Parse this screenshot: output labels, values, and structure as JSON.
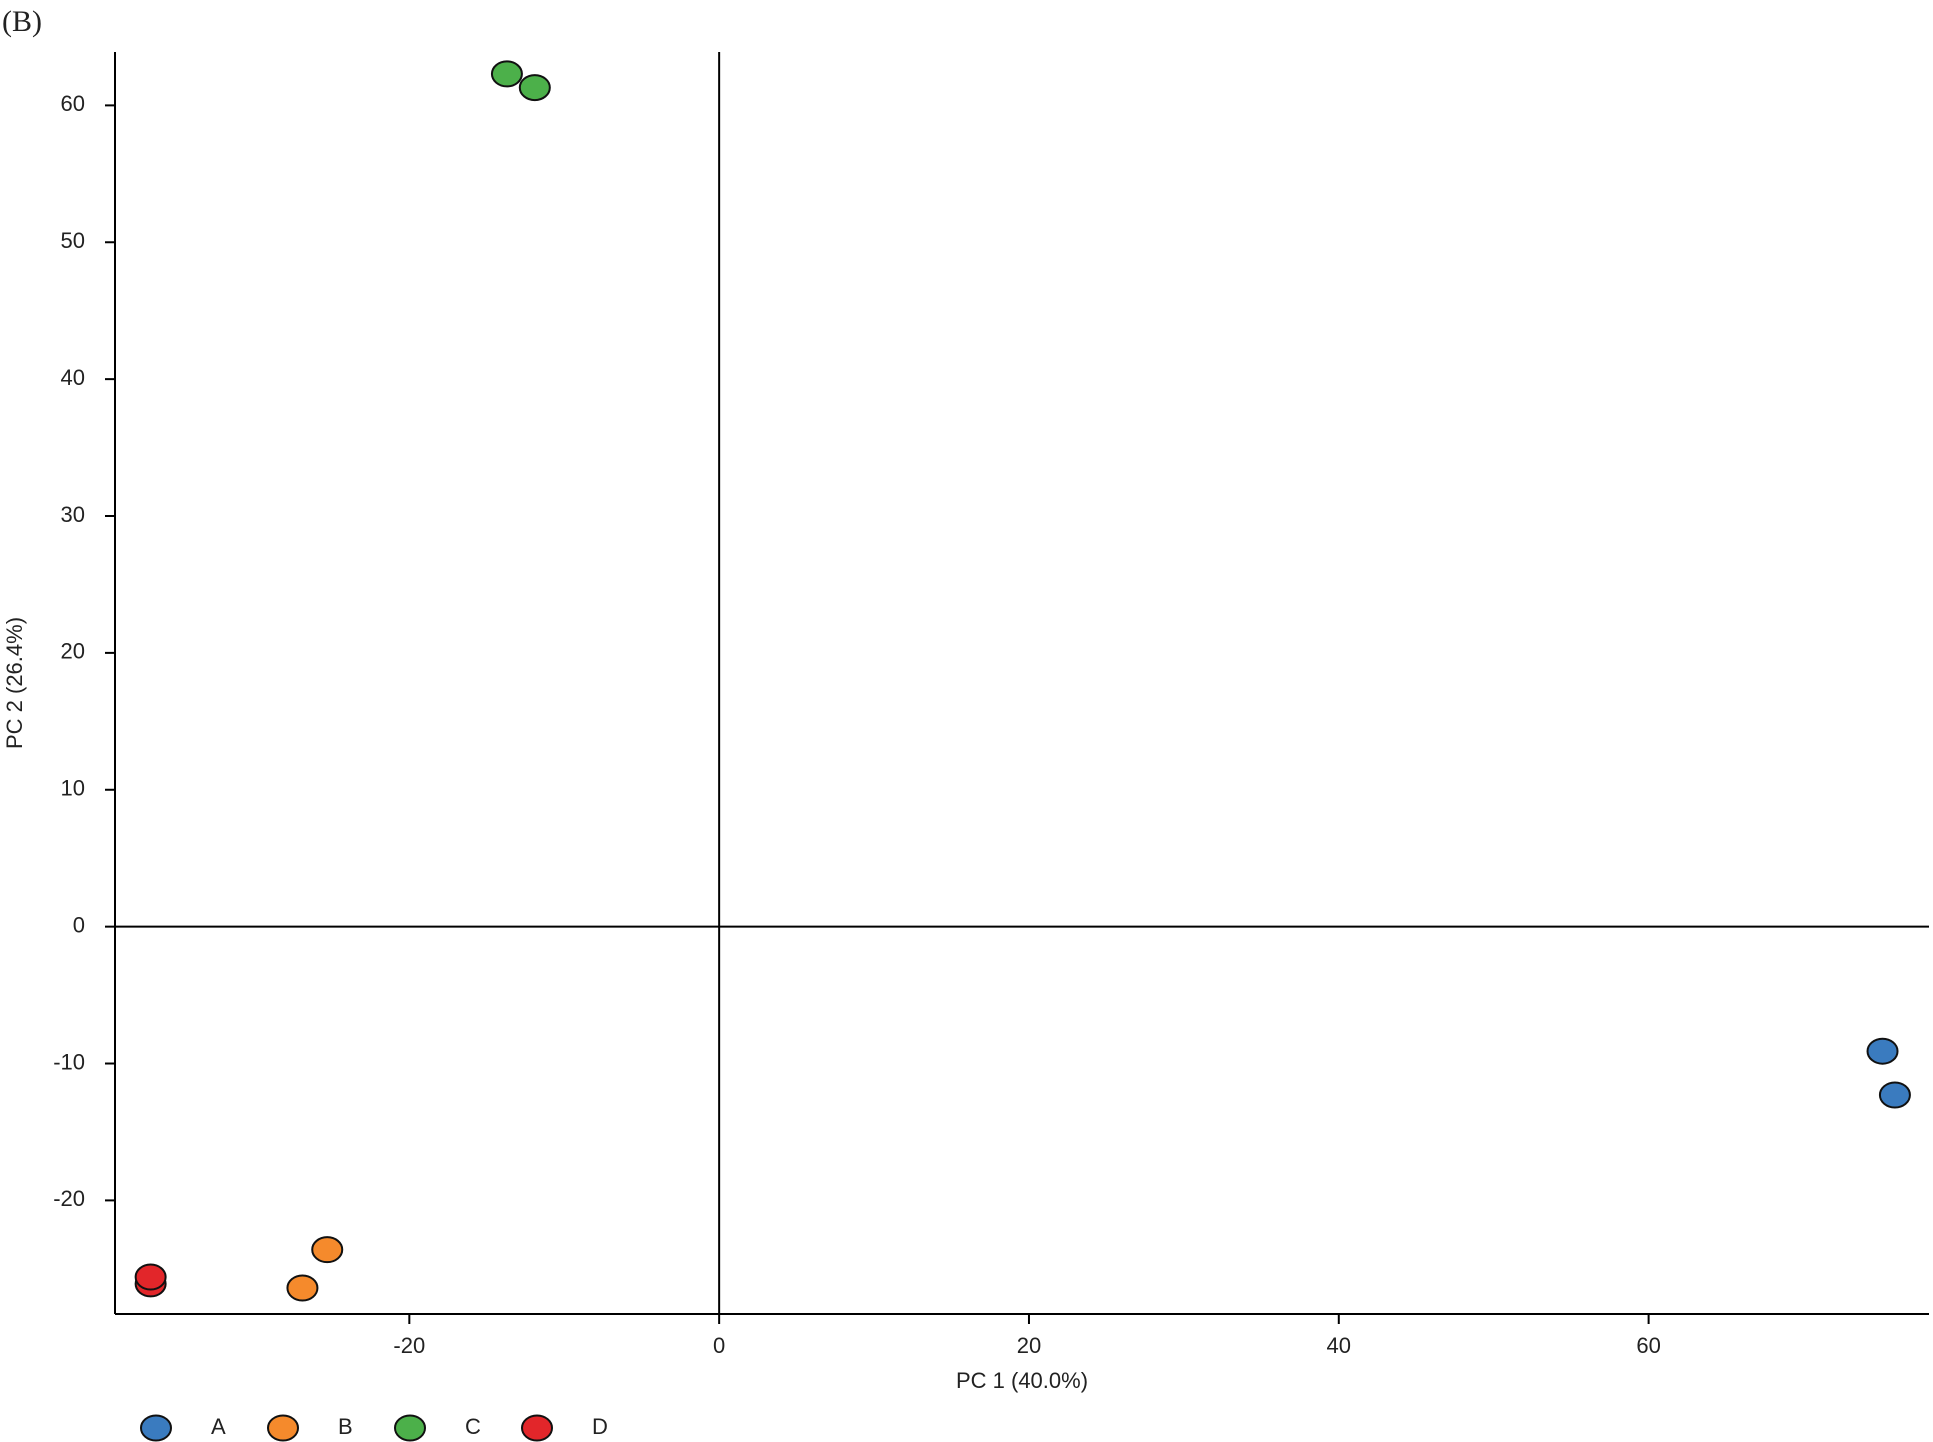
{
  "chart_data": {
    "type": "scatter",
    "panel_label": "(B)",
    "x_label": "PC 1 (40.0%)",
    "y_label": "PC 2 (26.4%)",
    "xlim": [
      -39,
      78.1
    ],
    "ylim": [
      -28.3,
      63.9
    ],
    "xticks": [
      -20,
      0,
      20,
      40,
      60
    ],
    "yticks": [
      -20,
      -10,
      0,
      10,
      20,
      30,
      40,
      50,
      60
    ],
    "legend": "bottom-left",
    "series": [
      {
        "name": "A",
        "color": "#3a7bbf",
        "x": [
          75.1,
          75.9
        ],
        "y": [
          -9.1,
          -12.3
        ]
      },
      {
        "name": "B",
        "color": "#f58a2c",
        "x": [
          -25.3,
          -26.9
        ],
        "y": [
          -23.6,
          -26.4
        ]
      },
      {
        "name": "C",
        "color": "#4cb04a",
        "x": [
          -13.7,
          -11.9
        ],
        "y": [
          62.3,
          61.3
        ]
      },
      {
        "name": "D",
        "color": "#e2262a",
        "x": [
          -36.7,
          -36.7
        ],
        "y": [
          -26.1,
          -25.6
        ]
      }
    ]
  }
}
